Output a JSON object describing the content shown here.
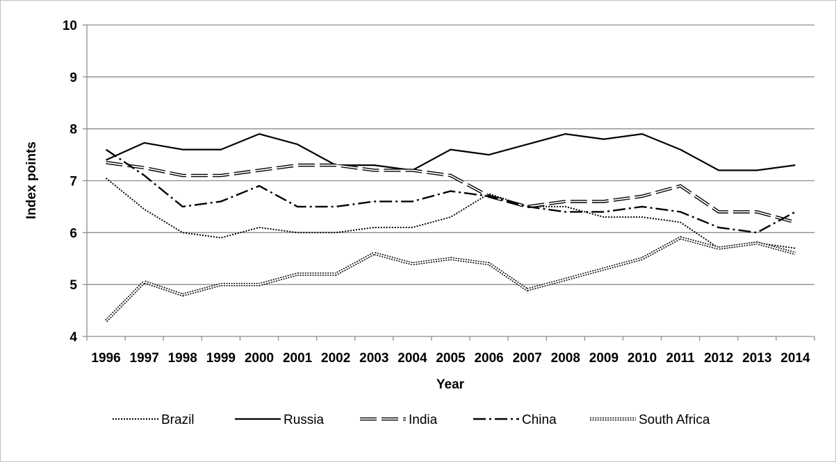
{
  "chart_data": {
    "type": "line",
    "title": "",
    "xlabel": "Year",
    "ylabel": "Index points",
    "ylim": [
      4,
      10
    ],
    "yticks": [
      4,
      5,
      6,
      7,
      8,
      9,
      10
    ],
    "categories": [
      "1996",
      "1997",
      "1998",
      "1999",
      "2000",
      "2001",
      "2002",
      "2003",
      "2004",
      "2005",
      "2006",
      "2007",
      "2008",
      "2009",
      "2010",
      "2011",
      "2012",
      "2013",
      "2014"
    ],
    "grid": "horizontal",
    "legend_position": "bottom",
    "series": [
      {
        "name": "Brazil",
        "style": "dotted",
        "values": [
          7.05,
          6.45,
          6.0,
          5.9,
          6.1,
          6.0,
          6.0,
          6.1,
          6.1,
          6.3,
          6.75,
          6.5,
          6.5,
          6.3,
          6.3,
          6.2,
          5.7,
          5.8,
          5.7
        ]
      },
      {
        "name": "Russia",
        "style": "solid",
        "values": [
          7.4,
          7.73,
          7.6,
          7.6,
          7.9,
          7.7,
          7.3,
          7.3,
          7.2,
          7.6,
          7.5,
          7.7,
          7.9,
          7.8,
          7.9,
          7.6,
          7.2,
          7.2,
          7.3
        ]
      },
      {
        "name": "India",
        "style": "long-dash-double",
        "values": [
          7.35,
          7.25,
          7.1,
          7.1,
          7.2,
          7.3,
          7.3,
          7.2,
          7.2,
          7.1,
          6.7,
          6.5,
          6.6,
          6.6,
          6.7,
          6.9,
          6.4,
          6.4,
          6.2
        ]
      },
      {
        "name": "China",
        "style": "dash-dot",
        "values": [
          7.6,
          7.1,
          6.5,
          6.6,
          6.9,
          6.5,
          6.5,
          6.6,
          6.6,
          6.8,
          6.7,
          6.5,
          6.4,
          6.4,
          6.5,
          6.4,
          6.1,
          6.0,
          6.4
        ]
      },
      {
        "name": "South Africa",
        "style": "double",
        "values": [
          4.3,
          5.05,
          4.8,
          5.0,
          5.0,
          5.2,
          5.2,
          5.6,
          5.4,
          5.5,
          5.4,
          4.9,
          5.1,
          5.3,
          5.5,
          5.9,
          5.7,
          5.8,
          5.6
        ]
      }
    ]
  }
}
